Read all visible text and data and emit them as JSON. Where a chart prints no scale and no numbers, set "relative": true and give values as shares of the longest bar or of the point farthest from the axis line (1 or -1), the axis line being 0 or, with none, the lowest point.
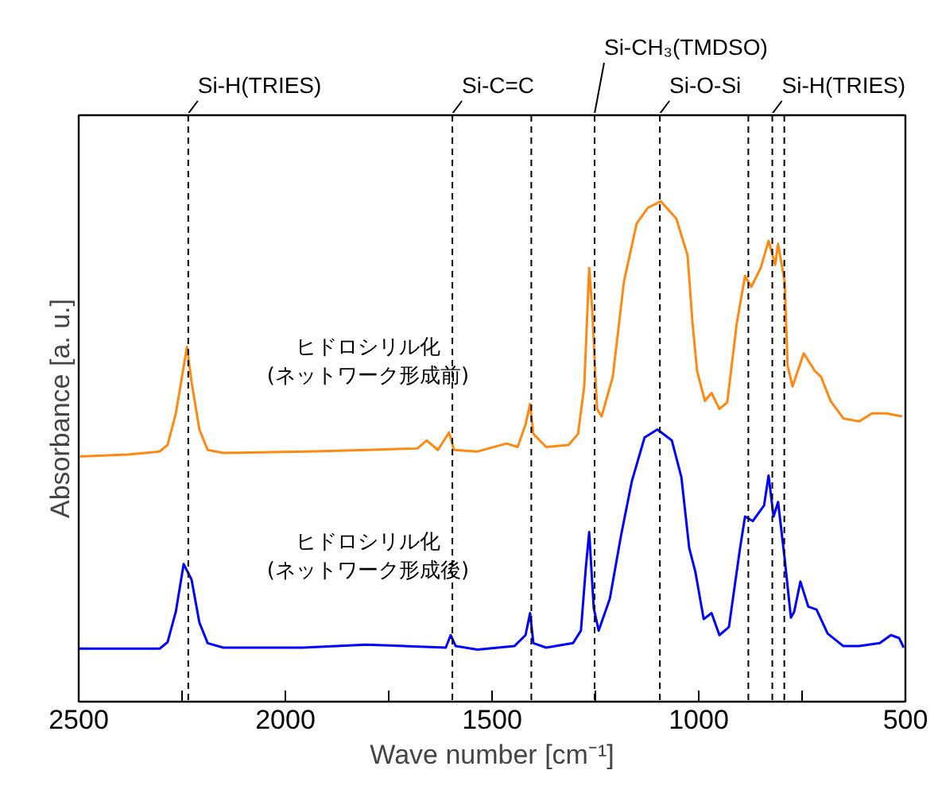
{
  "chart_data": {
    "type": "line",
    "relative": true,
    "xlabel": "Wave number [cm⁻¹]",
    "ylabel": "Absorbance [a. u.]",
    "xlim": [
      2500,
      500
    ],
    "xticks": [
      2500,
      {
        "value": 2250,
        "label": null
      },
      2000,
      {
        "value": 1750,
        "label": null
      },
      1500,
      {
        "value": 1250,
        "label": null
      },
      1000,
      {
        "value": 750,
        "label": null
      },
      500
    ],
    "grid": false,
    "ref_lines": [
      {
        "axis": "x",
        "value": 2235,
        "label": "Si-H(TRIES)",
        "line_style": "dashed"
      },
      {
        "axis": "x",
        "value": 1596,
        "label": "Si-C=C",
        "line_style": "dashed"
      },
      {
        "axis": "x",
        "value": 1405,
        "label": null,
        "line_style": "dashed"
      },
      {
        "axis": "x",
        "value": 1252,
        "label": "Si-CH₃(TMDSO)",
        "line_style": "dashed"
      },
      {
        "axis": "x",
        "value": 1094,
        "label": "Si-O-Si",
        "line_style": "dashed"
      },
      {
        "axis": "x",
        "value": 880,
        "label": null,
        "line_style": "dashed"
      },
      {
        "axis": "x",
        "value": 822,
        "label": "Si-H(TRIES)",
        "line_style": "dashed"
      },
      {
        "axis": "x",
        "value": 793,
        "label": null,
        "line_style": "dashed"
      }
    ],
    "annotations": [
      "ヒドロシリル化\n(ネットワーク形成前)",
      "ヒドロシリル化\n(ネットワーク形成後)"
    ],
    "series": [
      {
        "color": "#ff8811",
        "x": [
          2500,
          2381,
          2304,
          2285,
          2265,
          2238,
          2227,
          2208,
          2188,
          2150,
          1946,
          1804,
          1681,
          1658,
          1631,
          1604,
          1592,
          1535,
          1465,
          1438,
          1419,
          1408,
          1400,
          1369,
          1315,
          1292,
          1277,
          1265,
          1258,
          1246,
          1235,
          1208,
          1181,
          1150,
          1123,
          1092,
          1054,
          1027,
          1015,
          1004,
          985,
          969,
          950,
          931,
          908,
          888,
          873,
          850,
          831,
          815,
          808,
          792,
          785,
          773,
          746,
          719,
          704,
          681,
          650,
          612,
          581,
          546,
          508
        ],
        "values": [
          0.49,
          0.494,
          0.5,
          0.513,
          0.576,
          0.709,
          0.639,
          0.544,
          0.503,
          0.497,
          0.5,
          0.503,
          0.506,
          0.522,
          0.503,
          0.538,
          0.503,
          0.5,
          0.516,
          0.509,
          0.554,
          0.595,
          0.535,
          0.509,
          0.513,
          0.535,
          0.63,
          0.867,
          0.788,
          0.585,
          0.57,
          0.649,
          0.839,
          0.956,
          0.987,
          1,
          0.965,
          0.892,
          0.756,
          0.661,
          0.601,
          0.617,
          0.585,
          0.598,
          0.756,
          0.851,
          0.829,
          0.867,
          0.921,
          0.873,
          0.915,
          0.839,
          0.671,
          0.63,
          0.696,
          0.661,
          0.649,
          0.601,
          0.566,
          0.56,
          0.576,
          0.576,
          0.57
        ]
      },
      {
        "color": "#0000ff",
        "x": [
          2500,
          2304,
          2285,
          2265,
          2246,
          2227,
          2208,
          2188,
          2150,
          1958,
          1804,
          1612,
          1600,
          1588,
          1535,
          1446,
          1419,
          1408,
          1400,
          1369,
          1304,
          1285,
          1273,
          1265,
          1254,
          1242,
          1215,
          1188,
          1162,
          1131,
          1100,
          1065,
          1042,
          1023,
          1008,
          988,
          969,
          950,
          927,
          900,
          888,
          869,
          842,
          831,
          819,
          808,
          792,
          777,
          769,
          754,
          735,
          715,
          688,
          650,
          612,
          562,
          535,
          515,
          504
        ],
        "values": [
          0.106,
          0.106,
          0.119,
          0.18,
          0.275,
          0.244,
          0.158,
          0.117,
          0.108,
          0.108,
          0.114,
          0.108,
          0.133,
          0.111,
          0.104,
          0.111,
          0.133,
          0.177,
          0.117,
          0.108,
          0.117,
          0.142,
          0.269,
          0.339,
          0.187,
          0.142,
          0.206,
          0.332,
          0.44,
          0.528,
          0.544,
          0.522,
          0.449,
          0.307,
          0.259,
          0.165,
          0.177,
          0.133,
          0.149,
          0.307,
          0.37,
          0.361,
          0.392,
          0.452,
          0.37,
          0.399,
          0.285,
          0.168,
          0.18,
          0.24,
          0.19,
          0.184,
          0.136,
          0.111,
          0.111,
          0.117,
          0.133,
          0.127,
          0.108
        ]
      }
    ]
  }
}
